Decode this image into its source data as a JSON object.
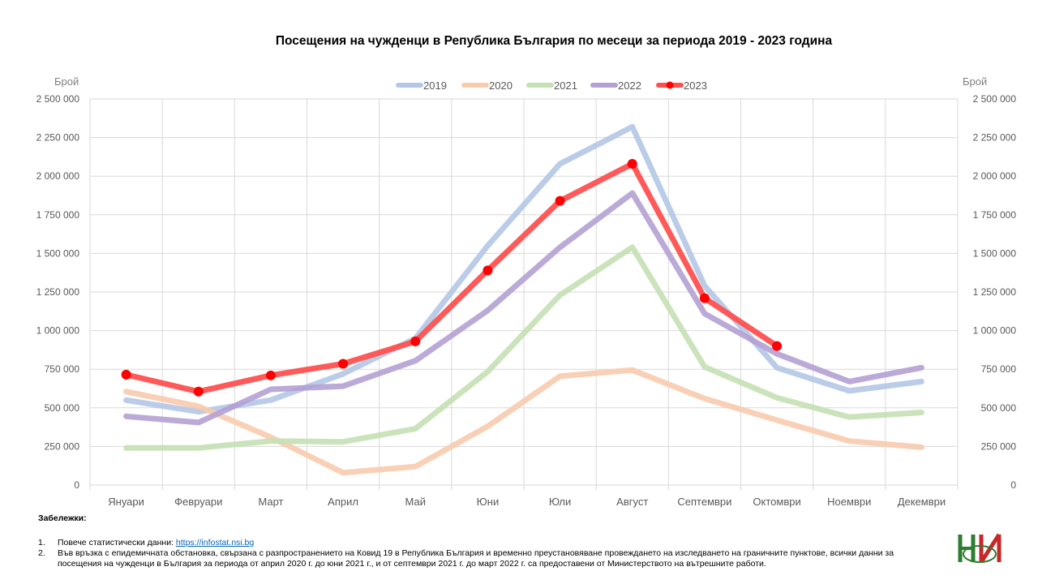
{
  "chart_data": {
    "type": "line",
    "title": "Посещения на чужденци в Република България по месеци за периода 2019 - 2023 година",
    "ylabel_left": "Брой",
    "ylabel_right": "Брой",
    "ylim": [
      0,
      2500000
    ],
    "yticks": [
      0,
      250000,
      500000,
      750000,
      1000000,
      1250000,
      1500000,
      1750000,
      2000000,
      2250000,
      2500000
    ],
    "ytick_labels": [
      "0",
      "250 000",
      "500 000",
      "750 000",
      "1 000 000",
      "1 250 000",
      "1 500 000",
      "1 750 000",
      "2 000 000",
      "2 250 000",
      "2 500 000"
    ],
    "grid": true,
    "legend_position": "top-center",
    "categories": [
      "Януари",
      "Февруари",
      "Март",
      "Април",
      "Май",
      "Юни",
      "Юли",
      "Август",
      "Септември",
      "Октомври",
      "Ноември",
      "Декември"
    ],
    "series": [
      {
        "name": "2019",
        "color": "#b4c7e7",
        "markers": false,
        "values": [
          550000,
          475000,
          550000,
          720000,
          950000,
          1550000,
          2080000,
          2320000,
          1290000,
          760000,
          610000,
          670000
        ]
      },
      {
        "name": "2020",
        "color": "#f8cbad",
        "markers": false,
        "values": [
          605000,
          510000,
          310000,
          80000,
          120000,
          380000,
          705000,
          745000,
          560000,
          420000,
          285000,
          245000
        ]
      },
      {
        "name": "2021",
        "color": "#c5e0b4",
        "markers": false,
        "values": [
          240000,
          240000,
          285000,
          280000,
          365000,
          735000,
          1230000,
          1540000,
          765000,
          565000,
          440000,
          470000
        ]
      },
      {
        "name": "2022",
        "color": "#b4a0d4",
        "markers": false,
        "values": [
          445000,
          405000,
          620000,
          640000,
          805000,
          1130000,
          1540000,
          1890000,
          1110000,
          850000,
          670000,
          760000
        ]
      },
      {
        "name": "2023",
        "color": "#ff5050",
        "markers": true,
        "values": [
          715000,
          605000,
          710000,
          785000,
          930000,
          1390000,
          1840000,
          2080000,
          1210000,
          900000,
          null,
          null
        ]
      }
    ]
  },
  "notes": {
    "heading": "Забележки:",
    "items": [
      {
        "num": "1.",
        "text": "Повече статистически данни: ",
        "link": "https://infostat.nsi.bg"
      },
      {
        "num": "2.",
        "text": "Във връзка с епидемичната обстановка, свързана с разпространението на Ковид 19 в Република България и временно преустановяване провеждането на изследването на граничните пунктове, всички данни за посещения на чужденци в България за периода от април 2020 г. до юни 2021 г., и от септември 2021 г. до март 2022 г. са предоставени от Министерството на вътрешните работи."
      }
    ]
  },
  "logo": {
    "name": "nsi-logo",
    "colors": [
      "#2e7d32",
      "#c62828"
    ]
  }
}
